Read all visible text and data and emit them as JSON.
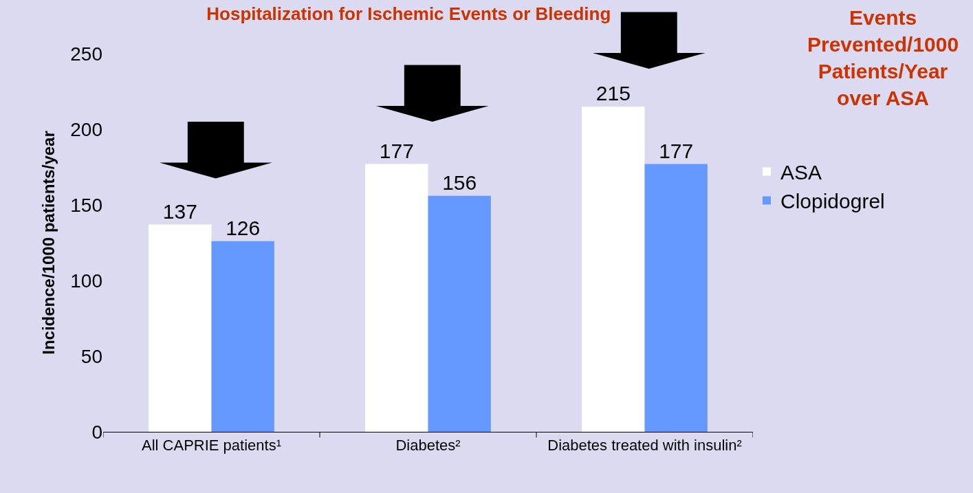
{
  "chart_data": {
    "type": "bar",
    "title": "Hospitalization for Ischemic Events or Bleeding",
    "ylabel": "Incidence/1000 patients/year",
    "categories": [
      "All CAPRIE patients¹",
      "Diabetes²",
      "Diabetes treated with insulin²"
    ],
    "series": [
      {
        "name": "ASA",
        "color": "#ffffff",
        "values": [
          137,
          177,
          215
        ]
      },
      {
        "name": "Clopidogrel",
        "color": "#6699ff",
        "values": [
          126,
          156,
          177
        ]
      }
    ],
    "ylim": [
      0,
      250
    ],
    "yticks": [
      0,
      50,
      100,
      150,
      200,
      250
    ],
    "data_labels": true,
    "grid": false,
    "legend": "right",
    "annotations": [
      "Events Prevented/1000 Patients/Year over ASA"
    ]
  }
}
